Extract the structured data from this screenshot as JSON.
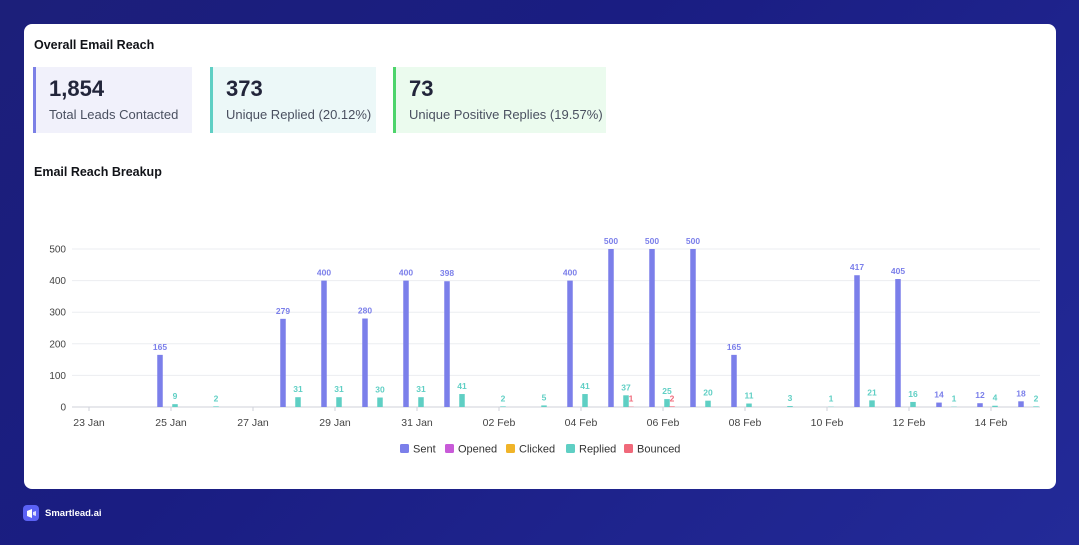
{
  "overview": {
    "title": "Overall Email Reach",
    "stats": [
      {
        "value": "1,854",
        "label": "Total Leads Contacted",
        "accent": "#7c80e6",
        "bg": "#f1f1fb"
      },
      {
        "value": "373",
        "label": "Unique Replied (20.12%)",
        "accent": "#5fcfc4",
        "bg": "#ecf8f8"
      },
      {
        "value": "73",
        "label": "Unique Positive Replies (19.57%)",
        "accent": "#4dd46b",
        "bg": "#ebfbee"
      }
    ]
  },
  "breakup": {
    "title": "Email Reach Breakup"
  },
  "chart_data": {
    "type": "bar",
    "x_ticks": [
      "23 Jan",
      "25 Jan",
      "27 Jan",
      "29 Jan",
      "31 Jan",
      "02 Feb",
      "04 Feb",
      "06 Feb",
      "08 Feb",
      "10 Feb",
      "12 Feb",
      "14 Feb"
    ],
    "y_ticks": [
      0,
      100,
      200,
      300,
      400,
      500
    ],
    "ylim": [
      0,
      500
    ],
    "grid": true,
    "legend_position": "bottom",
    "days": [
      "23 Jan",
      "24 Jan",
      "25 Jan",
      "26 Jan",
      "27 Jan",
      "28 Jan",
      "29 Jan",
      "30 Jan",
      "31 Jan",
      "01 Feb",
      "02 Feb",
      "03 Feb",
      "04 Feb",
      "05 Feb",
      "06 Feb",
      "07 Feb",
      "08 Feb",
      "09 Feb",
      "10 Feb",
      "11 Feb",
      "12 Feb",
      "13 Feb",
      "14 Feb"
    ],
    "series": [
      {
        "name": "Sent",
        "color": "#7b7fea",
        "values": [
          0,
          165,
          0,
          0,
          279,
          400,
          280,
          400,
          398,
          0,
          0,
          400,
          500,
          500,
          500,
          165,
          0,
          0,
          417,
          405,
          14,
          12,
          18
        ]
      },
      {
        "name": "Opened",
        "color": "#c85ad8",
        "values": [
          0,
          0,
          0,
          0,
          0,
          0,
          0,
          0,
          0,
          0,
          0,
          0,
          0,
          0,
          0,
          0,
          0,
          0,
          0,
          0,
          0,
          0,
          0
        ]
      },
      {
        "name": "Clicked",
        "color": "#f0b429",
        "values": [
          0,
          0,
          0,
          0,
          0,
          0,
          0,
          0,
          0,
          0,
          0,
          0,
          0,
          0,
          0,
          0,
          0,
          0,
          0,
          0,
          0,
          0,
          0
        ]
      },
      {
        "name": "Replied",
        "color": "#5fcfc4",
        "values": [
          0,
          9,
          2,
          0,
          31,
          31,
          30,
          31,
          41,
          2,
          5,
          41,
          37,
          25,
          20,
          11,
          3,
          1,
          21,
          16,
          1,
          4,
          2
        ]
      },
      {
        "name": "Bounced",
        "color": "#f0697a",
        "values": [
          0,
          0,
          0,
          0,
          0,
          0,
          0,
          0,
          0,
          0,
          0,
          0,
          1,
          2,
          0,
          0,
          0,
          0,
          0,
          0,
          0,
          0,
          0
        ]
      }
    ]
  },
  "footer": {
    "brand": "Smartlead.ai"
  }
}
